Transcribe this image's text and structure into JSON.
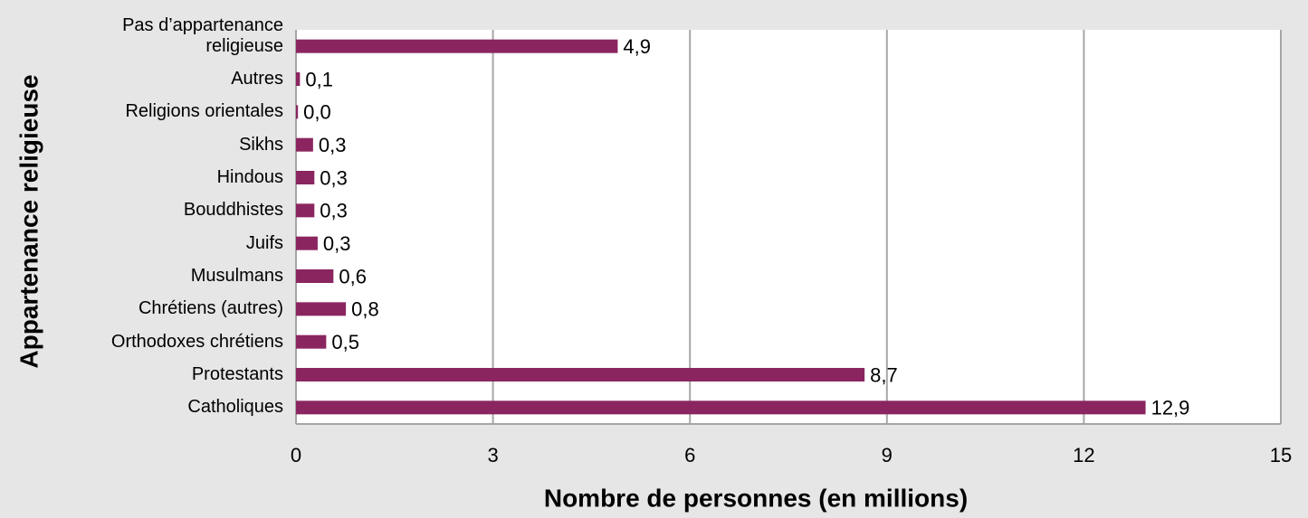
{
  "chart_data": {
    "type": "barh",
    "categories": [
      "Pas d’appartenance religieuse",
      "Autres",
      "Religions orientales",
      "Sikhs",
      "Hindous",
      "Bouddhistes",
      "Juifs",
      "Musulmans",
      "Chrétiens (autres)",
      "Orthodoxes chrétiens",
      "Protestants",
      "Catholiques"
    ],
    "values": [
      4.9,
      0.06,
      0.03,
      0.26,
      0.28,
      0.28,
      0.33,
      0.57,
      0.76,
      0.46,
      8.66,
      12.94
    ],
    "value_labels": [
      "4,9",
      "0,1",
      "0,0",
      "0,3",
      "0,3",
      "0,3",
      "0,3",
      "0,6",
      "0,8",
      "0,5",
      "8,7",
      "12,9"
    ],
    "color": "#8b2560",
    "xlabel": "Nombre de personnes (en millions)",
    "ylabel": "Appartenance religieuse",
    "xlim": [
      0,
      15
    ],
    "xticks": [
      0,
      3,
      6,
      9,
      12,
      15
    ],
    "grid": true
  }
}
